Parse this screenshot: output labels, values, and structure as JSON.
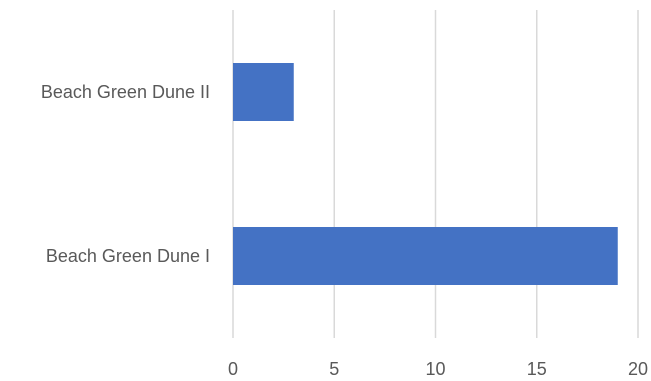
{
  "chart_data": {
    "type": "bar",
    "orientation": "horizontal",
    "categories": [
      "Beach Green Dune II",
      "Beach Green Dune I"
    ],
    "values": [
      3,
      19
    ],
    "xlim": [
      0,
      20
    ],
    "x_ticks": [
      0,
      5,
      10,
      15,
      20
    ],
    "grid": true,
    "bar_color": "#4472C4",
    "grid_color": "#D9D9D9"
  }
}
